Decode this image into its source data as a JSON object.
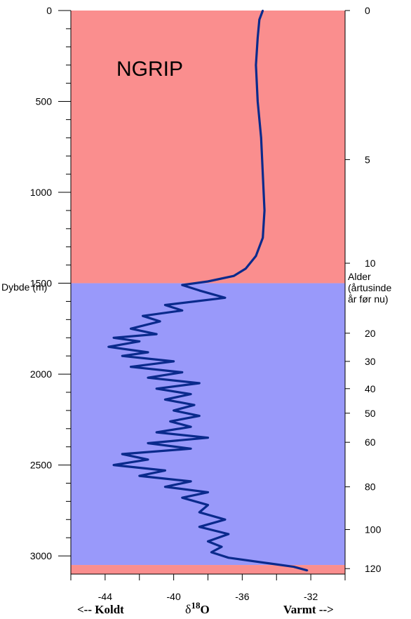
{
  "chart_data": {
    "type": "line",
    "title": "NGRIP",
    "ylabel_left": "Dybde (m)",
    "ylabel_right": [
      "Alder",
      "(årtusinde",
      "år før nu)"
    ],
    "xlabel_left": "<-- Koldt",
    "xlabel_right": "Varmt -->",
    "xlabel_symbol": "δ",
    "xlabel_sup": "18",
    "xlabel_main": "O",
    "xlim": [
      -46,
      -30
    ],
    "ylim": [
      0,
      3100
    ],
    "x_ticks": [
      "-44",
      "-40",
      "-36",
      "-32"
    ],
    "y_ticks_left": [
      "0",
      "500",
      "1000",
      "1500",
      "2000",
      "2500",
      "3000"
    ],
    "y_ticks_right": [
      {
        "label": "0",
        "depth": 0
      },
      {
        "label": "5",
        "depth": 820
      },
      {
        "label": "10",
        "depth": 1390
      },
      {
        "label": "20",
        "depth": 1775
      },
      {
        "label": "30",
        "depth": 1930
      },
      {
        "label": "40",
        "depth": 2080
      },
      {
        "label": "50",
        "depth": 2215
      },
      {
        "label": "60",
        "depth": 2375
      },
      {
        "label": "80",
        "depth": 2620
      },
      {
        "label": "100",
        "depth": 2855
      },
      {
        "label": "120",
        "depth": 3070
      }
    ],
    "background_bands": [
      {
        "from": 0,
        "to": 1500,
        "color": "#fa8e8e"
      },
      {
        "from": 1500,
        "to": 3050,
        "color": "#9999fa"
      },
      {
        "from": 3050,
        "to": 3100,
        "color": "#fa8e8e"
      }
    ],
    "series": [
      {
        "color": "#0a2a8c",
        "depth": [
          0,
          50,
          150,
          300,
          500,
          700,
          900,
          1100,
          1250,
          1350,
          1420,
          1460,
          1490,
          1510,
          1540,
          1580,
          1620,
          1650,
          1680,
          1710,
          1750,
          1780,
          1800,
          1820,
          1850,
          1880,
          1900,
          1930,
          1960,
          1990,
          2020,
          2050,
          2080,
          2110,
          2140,
          2170,
          2200,
          2230,
          2260,
          2290,
          2320,
          2350,
          2380,
          2410,
          2440,
          2470,
          2500,
          2530,
          2560,
          2590,
          2620,
          2650,
          2680,
          2720,
          2760,
          2800,
          2840,
          2880,
          2920,
          2950,
          2980,
          3010,
          3040,
          3060,
          3080
        ],
        "values": [
          -34.8,
          -35.0,
          -35.1,
          -35.2,
          -35.1,
          -34.9,
          -34.8,
          -34.7,
          -34.8,
          -35.2,
          -35.8,
          -36.5,
          -38.0,
          -39.5,
          -38.5,
          -37.0,
          -40.5,
          -39.5,
          -41.8,
          -40.8,
          -42.5,
          -41.0,
          -43.5,
          -42.0,
          -43.8,
          -41.5,
          -43.0,
          -40.0,
          -42.5,
          -39.5,
          -41.5,
          -38.5,
          -41.0,
          -39.0,
          -40.5,
          -38.8,
          -40.0,
          -38.5,
          -40.2,
          -39.0,
          -41.0,
          -38.0,
          -41.5,
          -39.0,
          -43.0,
          -41.5,
          -43.5,
          -40.5,
          -42.0,
          -39.0,
          -40.5,
          -38.0,
          -39.5,
          -38.0,
          -38.5,
          -37.0,
          -38.5,
          -36.8,
          -38.0,
          -37.2,
          -37.8,
          -36.8,
          -34.5,
          -33.0,
          -32.2
        ]
      }
    ]
  }
}
